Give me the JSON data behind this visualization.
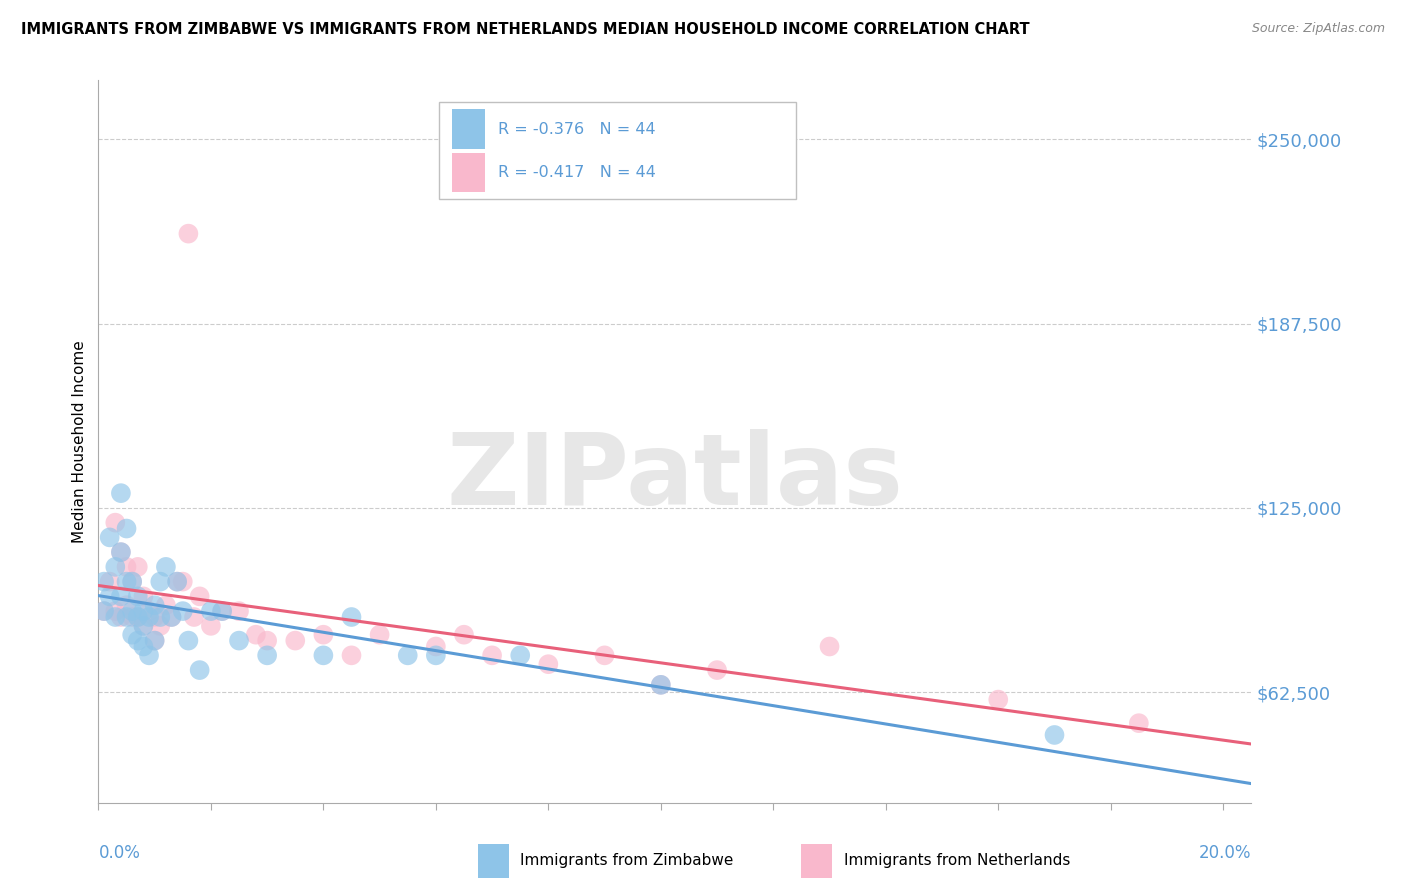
{
  "title": "IMMIGRANTS FROM ZIMBABWE VS IMMIGRANTS FROM NETHERLANDS MEDIAN HOUSEHOLD INCOME CORRELATION CHART",
  "source": "Source: ZipAtlas.com",
  "ylabel": "Median Household Income",
  "yticks": [
    62500,
    125000,
    187500,
    250000
  ],
  "ytick_labels": [
    "$62,500",
    "$125,000",
    "$187,500",
    "$250,000"
  ],
  "ylim": [
    25000,
    270000
  ],
  "xlim": [
    0.0,
    0.205
  ],
  "legend_zimbabwe": "R = -0.376   N = 44",
  "legend_netherlands": "R = -0.417   N = 44",
  "legend_bottom_zimbabwe": "Immigrants from Zimbabwe",
  "legend_bottom_netherlands": "Immigrants from Netherlands",
  "color_zimbabwe": "#8ec4e8",
  "color_netherlands": "#f9b8cc",
  "color_line_zimbabwe": "#5b9bd5",
  "color_line_netherlands": "#e8607a",
  "color_ytick": "#5b9bd5",
  "color_xtick": "#5b9bd5",
  "background_color": "#ffffff",
  "watermark": "ZIPatlas",
  "zimbabwe_x": [
    0.001,
    0.001,
    0.002,
    0.002,
    0.003,
    0.003,
    0.004,
    0.004,
    0.004,
    0.005,
    0.005,
    0.005,
    0.006,
    0.006,
    0.006,
    0.007,
    0.007,
    0.007,
    0.008,
    0.008,
    0.008,
    0.009,
    0.009,
    0.01,
    0.01,
    0.011,
    0.011,
    0.012,
    0.013,
    0.014,
    0.015,
    0.016,
    0.018,
    0.02,
    0.022,
    0.025,
    0.03,
    0.04,
    0.045,
    0.055,
    0.06,
    0.075,
    0.1,
    0.17
  ],
  "zimbabwe_y": [
    90000,
    100000,
    115000,
    95000,
    105000,
    88000,
    130000,
    110000,
    95000,
    118000,
    100000,
    88000,
    100000,
    90000,
    82000,
    95000,
    88000,
    80000,
    90000,
    85000,
    78000,
    88000,
    75000,
    92000,
    80000,
    100000,
    88000,
    105000,
    88000,
    100000,
    90000,
    80000,
    70000,
    90000,
    90000,
    80000,
    75000,
    75000,
    88000,
    75000,
    75000,
    75000,
    65000,
    48000
  ],
  "netherlands_x": [
    0.001,
    0.002,
    0.003,
    0.003,
    0.004,
    0.004,
    0.005,
    0.005,
    0.006,
    0.006,
    0.007,
    0.007,
    0.008,
    0.008,
    0.009,
    0.01,
    0.01,
    0.011,
    0.012,
    0.013,
    0.014,
    0.015,
    0.016,
    0.017,
    0.018,
    0.02,
    0.022,
    0.025,
    0.028,
    0.03,
    0.035,
    0.04,
    0.045,
    0.05,
    0.06,
    0.065,
    0.07,
    0.08,
    0.09,
    0.1,
    0.11,
    0.13,
    0.16,
    0.185
  ],
  "netherlands_y": [
    90000,
    100000,
    120000,
    90000,
    110000,
    88000,
    105000,
    92000,
    100000,
    88000,
    105000,
    88000,
    95000,
    85000,
    90000,
    88000,
    80000,
    85000,
    92000,
    88000,
    100000,
    100000,
    218000,
    88000,
    95000,
    85000,
    90000,
    90000,
    82000,
    80000,
    80000,
    82000,
    75000,
    82000,
    78000,
    82000,
    75000,
    72000,
    75000,
    65000,
    70000,
    78000,
    60000,
    52000
  ]
}
